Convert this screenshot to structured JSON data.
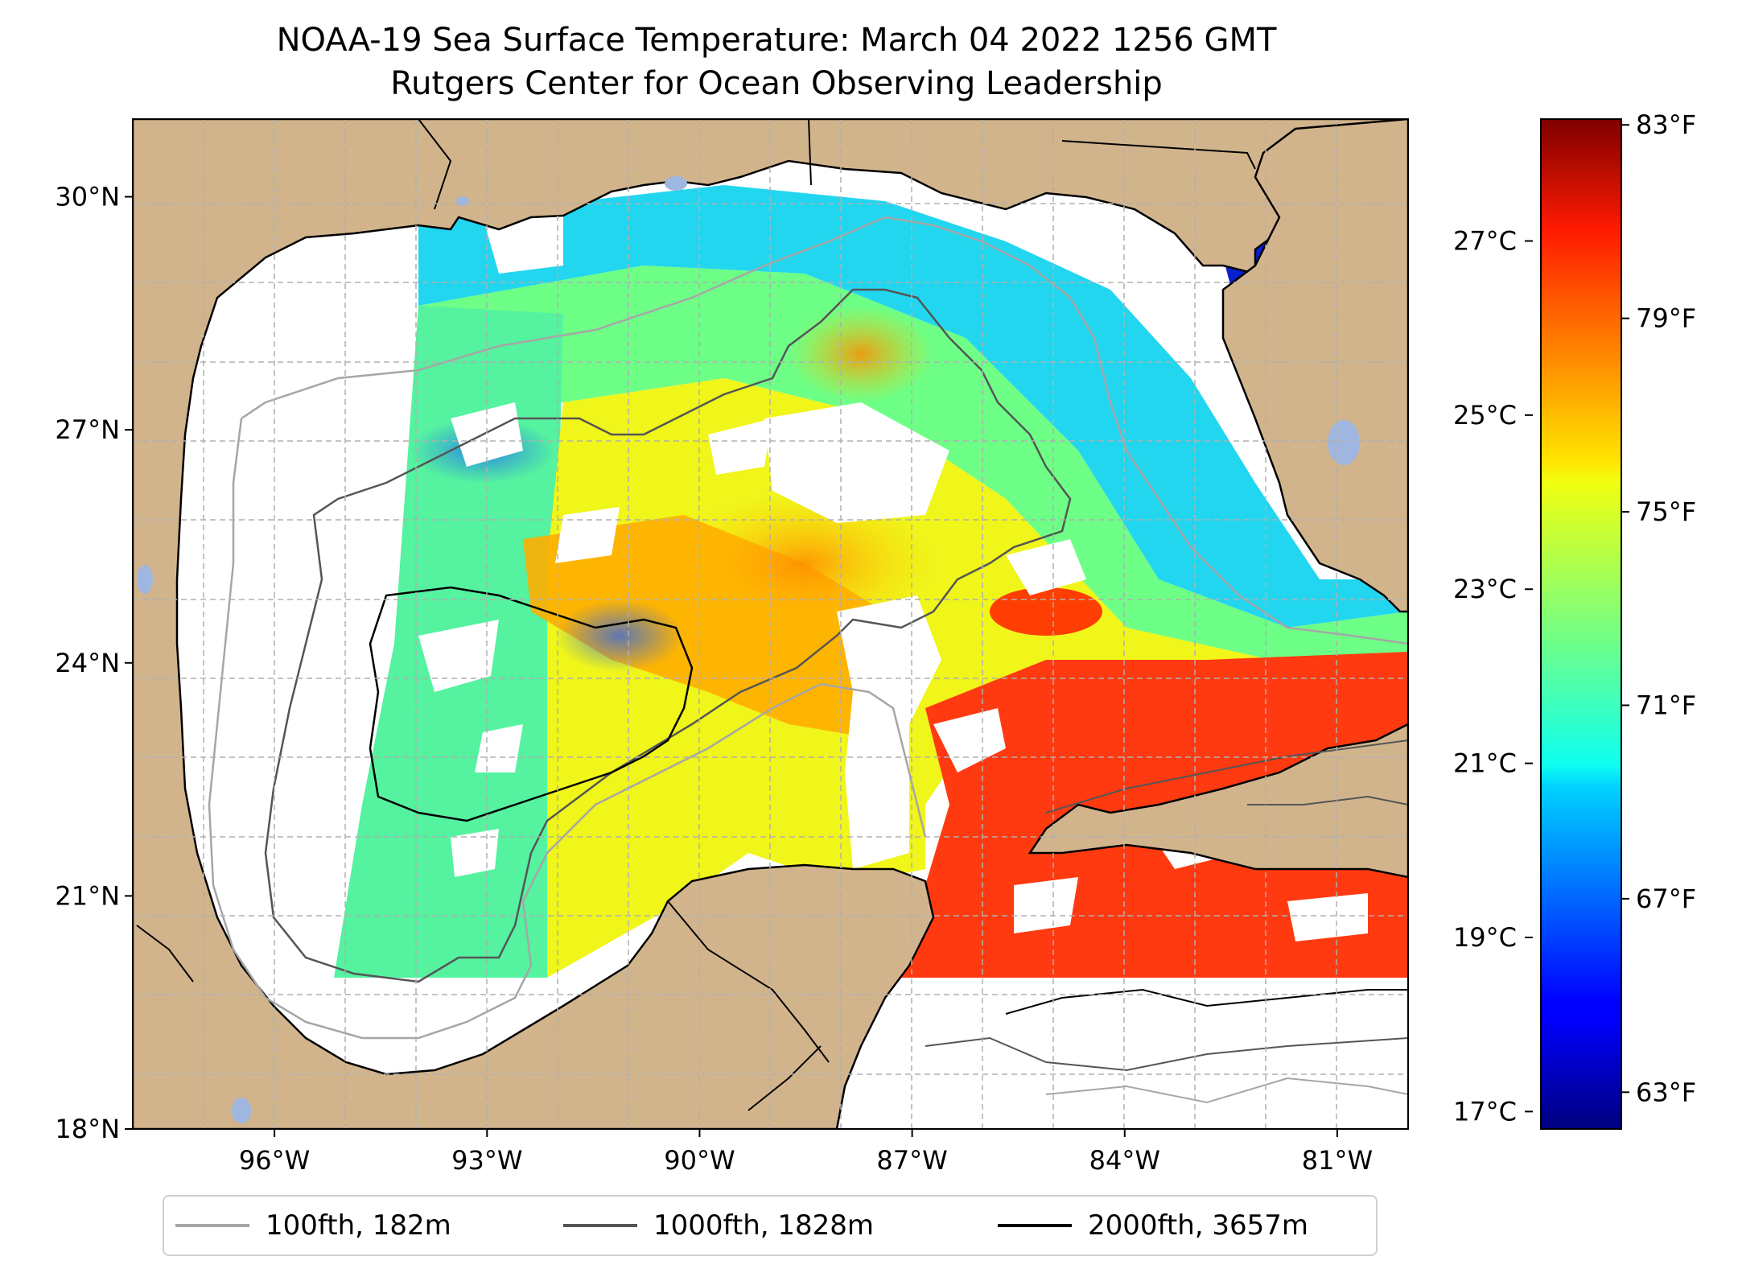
{
  "title": {
    "line1": "NOAA-19 Sea Surface Temperature: March 04 2022 1256 GMT",
    "line2": "Rutgers Center for Ocean Observing Leadership"
  },
  "map": {
    "region": "Gulf of Mexico",
    "lon_range": [
      -98,
      -80
    ],
    "lat_range": [
      18,
      31
    ],
    "lat_ticks": [
      {
        "value": 30,
        "label": "30°N"
      },
      {
        "value": 27,
        "label": "27°N"
      },
      {
        "value": 24,
        "label": "24°N"
      },
      {
        "value": 21,
        "label": "21°N"
      },
      {
        "value": 18,
        "label": "18°N"
      }
    ],
    "lon_ticks": [
      {
        "value": -96,
        "label": "96°W"
      },
      {
        "value": -93,
        "label": "93°W"
      },
      {
        "value": -90,
        "label": "90°W"
      },
      {
        "value": -87,
        "label": "87°W"
      },
      {
        "value": -84,
        "label": "84°W"
      },
      {
        "value": -81,
        "label": "81°W"
      }
    ],
    "colors": {
      "land": "#d2b48c",
      "missing": "#ffffff",
      "lakes": "#9fb6e0",
      "gridline": "#b0b0b0"
    }
  },
  "colorbar": {
    "colormap": "jet",
    "range_celsius": [
      16.8,
      28.4
    ],
    "celsius_ticks": [
      {
        "value": 27,
        "label": "27°C"
      },
      {
        "value": 25,
        "label": "25°C"
      },
      {
        "value": 23,
        "label": "23°C"
      },
      {
        "value": 21,
        "label": "21°C"
      },
      {
        "value": 19,
        "label": "19°C"
      },
      {
        "value": 17,
        "label": "17°C"
      }
    ],
    "fahrenheit_ticks": [
      {
        "value": 83,
        "label": "83°F"
      },
      {
        "value": 79,
        "label": "79°F"
      },
      {
        "value": 75,
        "label": "75°F"
      },
      {
        "value": 71,
        "label": "71°F"
      },
      {
        "value": 67,
        "label": "67°F"
      },
      {
        "value": 63,
        "label": "63°F"
      }
    ]
  },
  "legend": {
    "items": [
      {
        "label": "100fth, 182m",
        "color": "#a6a6a6"
      },
      {
        "label": "1000fth, 1828m",
        "color": "#555555"
      },
      {
        "label": "2000fth, 3657m",
        "color": "#000000"
      }
    ]
  }
}
